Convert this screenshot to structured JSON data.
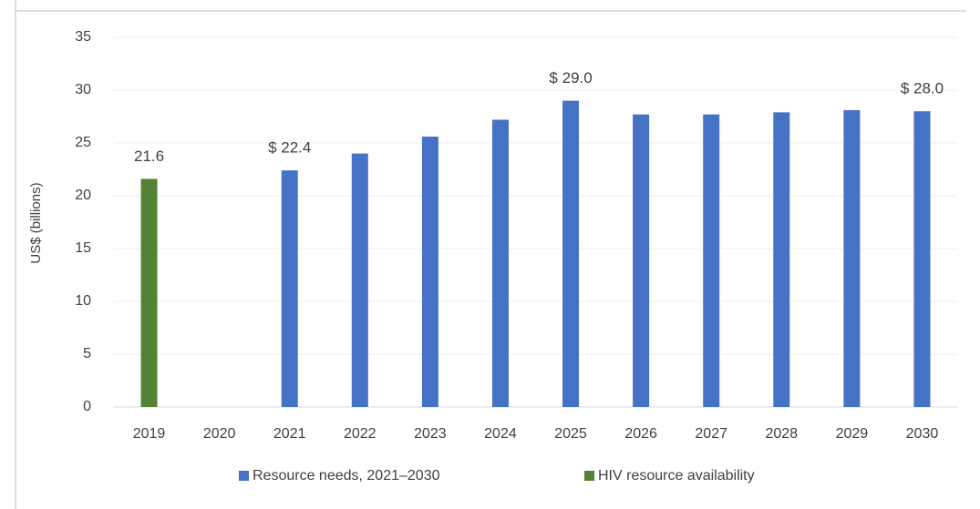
{
  "chart_data": {
    "type": "bar",
    "y_label": "US$ (billions)",
    "categories": [
      "2019",
      "2020",
      "2021",
      "2022",
      "2023",
      "2024",
      "2025",
      "2026",
      "2027",
      "2028",
      "2029",
      "2030"
    ],
    "series": [
      {
        "name": "Resource needs, 2021–2030",
        "color": "#4472c4",
        "values": [
          null,
          null,
          22.4,
          24.0,
          25.6,
          27.2,
          29.0,
          27.7,
          27.7,
          27.9,
          28.1,
          28.0
        ],
        "value_labels": [
          null,
          null,
          "$ 22.4",
          null,
          null,
          null,
          "$ 29.0",
          null,
          null,
          null,
          null,
          "$ 28.0"
        ]
      },
      {
        "name": "HIV resource availability",
        "color": "#548235",
        "values": [
          21.6,
          null,
          null,
          null,
          null,
          null,
          null,
          null,
          null,
          null,
          null,
          null
        ],
        "value_labels": [
          "21.6",
          null,
          null,
          null,
          null,
          null,
          null,
          null,
          null,
          null,
          null,
          null
        ]
      }
    ],
    "ylim": [
      0,
      35
    ],
    "yticks": [
      0,
      5,
      10,
      15,
      20,
      25,
      30,
      35
    ],
    "grid": true,
    "legend": "bottom"
  }
}
